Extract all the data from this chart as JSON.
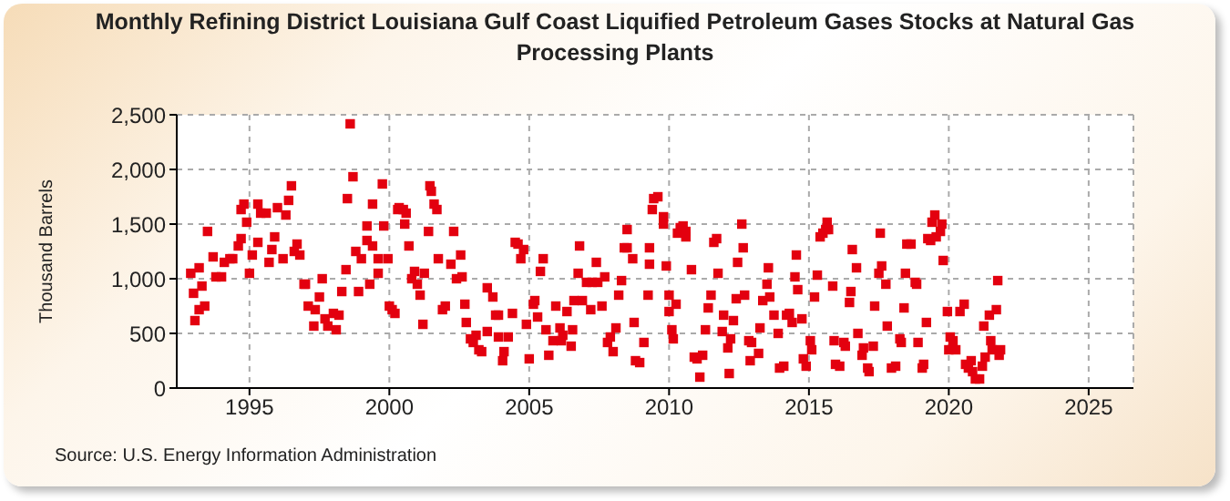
{
  "chart_data": {
    "type": "scatter",
    "title": "Monthly Refining District Louisiana Gulf Coast Liquified Petroleum Gases Stocks at Natural Gas Processing Plants",
    "ylabel": "Thousand Barrels",
    "annotations": [
      "Source: U.S. Energy Information Administration"
    ],
    "xlim": [
      1992.4,
      2026.6
    ],
    "xticks": [
      1995,
      2000,
      2005,
      2010,
      2015,
      2020,
      2025
    ],
    "ylim": [
      0,
      2500
    ],
    "yticks": [
      0,
      500,
      {
        "value": 1000,
        "label": "1,000"
      },
      {
        "value": 1500,
        "label": "1,500"
      },
      {
        "value": 2000,
        "label": "2,000"
      },
      {
        "value": 2500,
        "label": "2,500"
      }
    ],
    "grid": true,
    "marker": "square",
    "series": [
      {
        "color": "#e3000f",
        "x": [
          1992.9,
          1993.0,
          1993.05,
          1993.2,
          1993.2,
          1993.4,
          1993.3,
          1993.5,
          1993.7,
          1993.8,
          1994.0,
          1994.1,
          1994.3,
          1994.4,
          1994.6,
          1994.7,
          1994.7,
          1994.8,
          1994.9,
          1995.0,
          1995.1,
          1995.3,
          1995.3,
          1995.4,
          1995.6,
          1995.7,
          1995.8,
          1995.9,
          1996.0,
          1996.2,
          1996.3,
          1996.4,
          1996.5,
          1996.6,
          1996.7,
          1996.8,
          1996.95,
          1997.0,
          1997.1,
          1997.3,
          1997.35,
          1997.5,
          1997.6,
          1997.7,
          1997.8,
          1998.0,
          1998.1,
          1998.2,
          1998.3,
          1998.45,
          1998.5,
          1998.6,
          1998.7,
          1998.8,
          1998.9,
          1999.0,
          1999.2,
          1999.2,
          1999.3,
          1999.4,
          1999.4,
          1999.6,
          1999.6,
          1999.75,
          1999.8,
          1999.95,
          2000.0,
          2000.1,
          2000.2,
          2000.3,
          2000.35,
          2000.5,
          2000.55,
          2000.6,
          2000.7,
          2000.8,
          2000.9,
          2001.0,
          2001.1,
          2001.2,
          2001.25,
          2001.4,
          2001.45,
          2001.5,
          2001.6,
          2001.7,
          2001.75,
          2001.9,
          2002.0,
          2002.2,
          2002.3,
          2002.4,
          2002.55,
          2002.6,
          2002.7,
          2002.75,
          2002.9,
          2003.0,
          2003.1,
          2003.2,
          2003.3,
          2003.5,
          2003.5,
          2003.7,
          2003.8,
          2003.9,
          2003.9,
          2004.05,
          2004.1,
          2004.25,
          2004.4,
          2004.5,
          2004.6,
          2004.7,
          2004.8,
          2004.9,
          2005.0,
          2005.15,
          2005.2,
          2005.3,
          2005.4,
          2005.5,
          2005.6,
          2005.7,
          2005.85,
          2005.95,
          2006.1,
          2006.15,
          2006.2,
          2006.35,
          2006.5,
          2006.55,
          2006.6,
          2006.75,
          2006.8,
          2006.9,
          2007.05,
          2007.2,
          2007.25,
          2007.4,
          2007.45,
          2007.6,
          2007.7,
          2007.8,
          2007.9,
          2008.0,
          2008.1,
          2008.2,
          2008.3,
          2008.4,
          2008.5,
          2008.5,
          2008.7,
          2008.75,
          2008.8,
          2008.95,
          2009.1,
          2009.25,
          2009.3,
          2009.3,
          2009.4,
          2009.45,
          2009.6,
          2009.8,
          2009.8,
          2009.9,
          2010.0,
          2010.0,
          2010.1,
          2010.15,
          2010.25,
          2010.3,
          2010.4,
          2010.5,
          2010.6,
          2010.6,
          2010.8,
          2010.9,
          2011.0,
          2011.1,
          2011.2,
          2011.3,
          2011.4,
          2011.5,
          2011.6,
          2011.7,
          2011.75,
          2011.9,
          2011.95,
          2012.1,
          2012.15,
          2012.2,
          2012.3,
          2012.4,
          2012.45,
          2012.6,
          2012.65,
          2012.7,
          2012.85,
          2012.9,
          2012.95,
          2013.2,
          2013.25,
          2013.35,
          2013.5,
          2013.55,
          2013.6,
          2013.75,
          2013.9,
          2013.95,
          2014.1,
          2014.2,
          2014.3,
          2014.4,
          2014.5,
          2014.55,
          2014.6,
          2014.75,
          2014.8,
          2014.9,
          2015.05,
          2015.1,
          2015.2,
          2015.3,
          2015.4,
          2015.5,
          2015.6,
          2015.65,
          2015.7,
          2015.85,
          2015.9,
          2015.95,
          2016.1,
          2016.25,
          2016.3,
          2016.45,
          2016.5,
          2016.55,
          2016.7,
          2016.75,
          2016.9,
          2016.95,
          2017.1,
          2017.15,
          2017.3,
          2017.35,
          2017.5,
          2017.55,
          2017.6,
          2017.75,
          2017.8,
          2017.95,
          2018.1,
          2018.25,
          2018.3,
          2018.4,
          2018.45,
          2018.5,
          2018.65,
          2018.8,
          2018.85,
          2018.9,
          2019.05,
          2019.1,
          2019.2,
          2019.25,
          2019.35,
          2019.4,
          2019.5,
          2019.55,
          2019.7,
          2019.75,
          2019.8,
          2019.95,
          2020.0,
          2020.05,
          2020.15,
          2020.25,
          2020.4,
          2020.55,
          2020.6,
          2020.7,
          2020.8,
          2020.85,
          2020.95,
          2021.1,
          2021.2,
          2021.25,
          2021.3,
          2021.45,
          2021.5,
          2021.55,
          2021.7,
          2021.75,
          2021.8,
          2021.85
        ],
        "values": [
          1050,
          867,
          617,
          717,
          1100,
          750,
          933,
          1433,
          1200,
          1017,
          1017,
          1150,
          1183,
          1183,
          1300,
          1367,
          1633,
          1683,
          1517,
          1050,
          1217,
          1333,
          1683,
          1600,
          1600,
          1150,
          1267,
          1383,
          1650,
          1183,
          1583,
          1717,
          1850,
          1250,
          1317,
          1217,
          950,
          950,
          750,
          567,
          717,
          833,
          1000,
          633,
          567,
          683,
          533,
          667,
          883,
          1083,
          1733,
          2417,
          1933,
          1250,
          883,
          1183,
          1483,
          1350,
          950,
          1300,
          1683,
          1050,
          1183,
          1867,
          1483,
          1183,
          750,
          717,
          683,
          1633,
          1650,
          1633,
          1500,
          1600,
          1300,
          1000,
          1067,
          950,
          850,
          583,
          1050,
          1433,
          1850,
          1800,
          1683,
          1633,
          1183,
          717,
          750,
          1133,
          1433,
          1000,
          1217,
          1017,
          767,
          600,
          450,
          417,
          483,
          350,
          333,
          517,
          917,
          833,
          667,
          667,
          467,
          250,
          333,
          467,
          683,
          1333,
          1317,
          1183,
          1267,
          583,
          267,
          767,
          800,
          650,
          1067,
          1183,
          533,
          300,
          433,
          750,
          550,
          433,
          483,
          700,
          383,
          533,
          800,
          1050,
          1300,
          800,
          967,
          717,
          967,
          1150,
          967,
          750,
          1017,
          417,
          467,
          333,
          550,
          850,
          983,
          1283,
          1283,
          1450,
          1183,
          600,
          250,
          233,
          417,
          850,
          1133,
          1283,
          1633,
          1733,
          1750,
          1500,
          1567,
          1117,
          850,
          700,
          533,
          450,
          767,
          1417,
          1467,
          1483,
          1433,
          1383,
          1083,
          283,
          267,
          100,
          300,
          533,
          733,
          850,
          1333,
          1367,
          1050,
          517,
          667,
          367,
          133,
          450,
          617,
          817,
          1150,
          1500,
          1283,
          850,
          433,
          250,
          417,
          317,
          550,
          800,
          950,
          1100,
          833,
          667,
          500,
          183,
          200,
          667,
          683,
          600,
          1017,
          1217,
          900,
          633,
          267,
          200,
          433,
          350,
          833,
          1033,
          1383,
          1417,
          1450,
          1517,
          1450,
          933,
          433,
          217,
          200,
          417,
          383,
          783,
          883,
          1267,
          1100,
          500,
          300,
          367,
          183,
          150,
          383,
          750,
          1050,
          1417,
          1117,
          950,
          567,
          183,
          200,
          450,
          417,
          733,
          1050,
          1317,
          1317,
          967,
          950,
          417,
          183,
          217,
          600,
          1367,
          1350,
          1517,
          1583,
          1383,
          1433,
          1500,
          1167,
          700,
          350,
          467,
          433,
          350,
          700,
          767,
          217,
          183,
          250,
          150,
          83,
          83,
          200,
          567,
          283,
          667,
          433,
          350,
          717,
          983,
          300,
          350
        ]
      }
    ]
  }
}
